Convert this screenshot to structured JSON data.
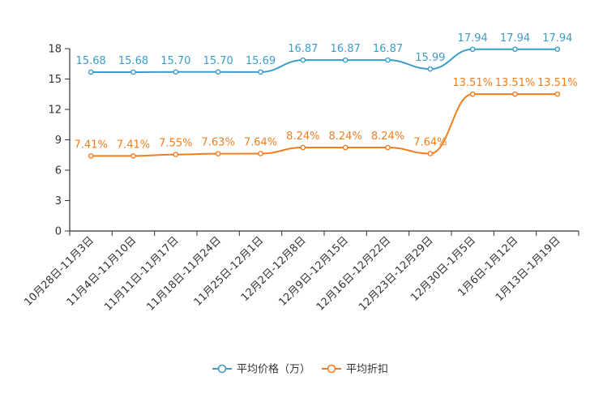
{
  "chart_data": {
    "type": "line",
    "title": "",
    "xlabel": "",
    "ylabel": "",
    "ylim": [
      0,
      18
    ],
    "yticks": [
      0,
      3,
      6,
      9,
      12,
      15,
      18
    ],
    "categories": [
      "10月28日-11月3日",
      "11月4日-11月10日",
      "11月11日-11月17日",
      "11月18日-11月24日",
      "11月25日-12月1日",
      "12月2日-12月8日",
      "12月9日-12月15日",
      "12月16日-12月22日",
      "12月23日-12月29日",
      "12月30日-1月5日",
      "1月6日-1月12日",
      "1月13日-1月19日"
    ],
    "series": [
      {
        "name": "平均价格（万）",
        "color": "#3c9dc8",
        "values": [
          15.68,
          15.68,
          15.7,
          15.7,
          15.69,
          16.87,
          16.87,
          16.87,
          15.99,
          17.94,
          17.94,
          17.94
        ],
        "labels": [
          "15.68",
          "15.68",
          "15.70",
          "15.70",
          "15.69",
          "16.87",
          "16.87",
          "16.87",
          "15.99",
          "17.94",
          "17.94",
          "17.94"
        ]
      },
      {
        "name": "平均折扣",
        "color": "#f07d1e",
        "values": [
          7.41,
          7.41,
          7.55,
          7.63,
          7.64,
          8.24,
          8.24,
          8.24,
          7.64,
          13.51,
          13.51,
          13.51
        ],
        "labels": [
          "7.41%",
          "7.41%",
          "7.55%",
          "7.63%",
          "7.64%",
          "8.24%",
          "8.24%",
          "8.24%",
          "7.64%",
          "13.51%",
          "13.51%",
          "13.51%"
        ]
      }
    ],
    "legend": {
      "position": "bottom-center"
    },
    "grid": false
  }
}
